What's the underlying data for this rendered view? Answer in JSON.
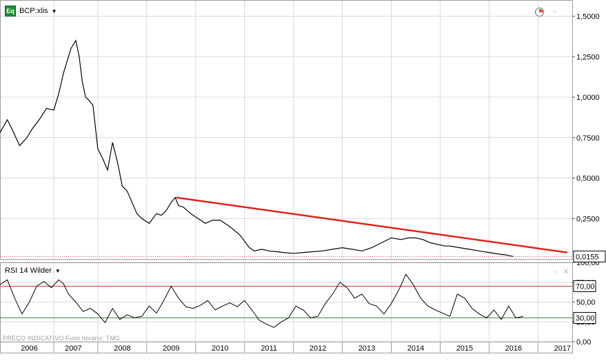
{
  "header": {
    "icon_label": "Eq",
    "ticker": "BCP:xlis",
    "rsi_title": "RSI 14 Wilder",
    "footer_left": "PREÇO INDICATIVO",
    "footer_tz": "Fuso horário: TMG"
  },
  "colors": {
    "trendline": "#e0211a",
    "overbought": "#c63b3b",
    "oversold": "#2f8f3f",
    "price": "#000000",
    "grid": "#d9d9d9",
    "label_box": "#000000"
  },
  "chart_data": [
    {
      "type": "line",
      "title": "",
      "subtitle": "",
      "xlabel": "",
      "ylabel": "",
      "x_unit": "year",
      "xlim": [
        2005.8,
        2017.5
      ],
      "ylim": [
        0,
        1.6
      ],
      "y_ticks": [
        "0,2500",
        "0,5000",
        "0,7500",
        "1,0000",
        "1,2500",
        "1,5000"
      ],
      "y_tick_values": [
        0.25,
        0.5,
        0.75,
        1.0,
        1.25,
        1.5
      ],
      "x_ticks": [
        "2006",
        "2007",
        "2008",
        "2009",
        "2010",
        "2011",
        "2012",
        "2013",
        "2014",
        "2015",
        "2016",
        "2017"
      ],
      "x_tick_values": [
        2006.4,
        2007.3,
        2008.3,
        2009.3,
        2010.3,
        2011.3,
        2012.3,
        2013.3,
        2014.3,
        2015.3,
        2016.3,
        2017.3
      ],
      "grid": true,
      "series": [
        {
          "x": [
            2005.8,
            2005.95,
            2006.05,
            2006.2,
            2006.35,
            2006.45,
            2006.6,
            2006.75,
            2006.9,
            2007.0,
            2007.1,
            2007.25,
            2007.35,
            2007.42,
            2007.48,
            2007.55,
            2007.62,
            2007.7,
            2007.8,
            2007.9,
            2008.0,
            2008.1,
            2008.2,
            2008.3,
            2008.4,
            2008.5,
            2008.6,
            2008.7,
            2008.85,
            2009.0,
            2009.1,
            2009.2,
            2009.3,
            2009.38,
            2009.45,
            2009.55,
            2009.7,
            2009.85,
            2010.0,
            2010.15,
            2010.3,
            2010.5,
            2010.7,
            2010.9,
            2011.0,
            2011.15,
            2011.3,
            2011.45,
            2011.6,
            2011.8,
            2012.0,
            2012.2,
            2012.4,
            2012.6,
            2012.8,
            2013.0,
            2013.2,
            2013.4,
            2013.6,
            2013.8,
            2014.0,
            2014.15,
            2014.3,
            2014.45,
            2014.6,
            2014.75,
            2014.9,
            2015.0,
            2015.2,
            2015.4,
            2015.6,
            2015.8,
            2016.0,
            2016.15,
            2016.3
          ],
          "values": [
            0.78,
            0.86,
            0.8,
            0.7,
            0.75,
            0.8,
            0.86,
            0.93,
            0.92,
            1.02,
            1.15,
            1.3,
            1.35,
            1.25,
            1.1,
            1.0,
            0.98,
            0.95,
            0.68,
            0.62,
            0.55,
            0.72,
            0.6,
            0.45,
            0.42,
            0.35,
            0.28,
            0.25,
            0.22,
            0.28,
            0.27,
            0.3,
            0.35,
            0.38,
            0.33,
            0.32,
            0.28,
            0.25,
            0.22,
            0.24,
            0.24,
            0.2,
            0.15,
            0.07,
            0.05,
            0.06,
            0.05,
            0.045,
            0.04,
            0.035,
            0.04,
            0.045,
            0.05,
            0.06,
            0.07,
            0.06,
            0.05,
            0.07,
            0.1,
            0.13,
            0.12,
            0.13,
            0.13,
            0.12,
            0.1,
            0.09,
            0.08,
            0.08,
            0.07,
            0.06,
            0.05,
            0.04,
            0.03,
            0.025,
            0.0155
          ]
        }
      ],
      "trendline": {
        "x": [
          2009.4,
          2017.4
        ],
        "values": [
          0.38,
          0.04
        ]
      },
      "last_value_label": "0,0155",
      "last_value": 0.0155
    },
    {
      "type": "line",
      "title": "RSI 14 Wilder",
      "xlabel": "",
      "ylabel": "",
      "x_unit": "year",
      "xlim": [
        2005.8,
        2017.5
      ],
      "ylim": [
        0,
        100
      ],
      "y_ticks": [
        "0,00",
        "25,00",
        "50,00",
        "75,00",
        "100,00"
      ],
      "y_tick_values": [
        0,
        25,
        50,
        75,
        100
      ],
      "reference_lines": [
        {
          "value": 70,
          "label": "70,00",
          "color": "#c63b3b"
        },
        {
          "value": 30,
          "label": "30,00",
          "color": "#2f8f3f"
        }
      ],
      "grid": true,
      "series": [
        {
          "x": [
            2005.8,
            2005.95,
            2006.1,
            2006.25,
            2006.4,
            2006.55,
            2006.7,
            2006.85,
            2007.0,
            2007.1,
            2007.2,
            2007.35,
            2007.5,
            2007.65,
            2007.8,
            2007.95,
            2008.1,
            2008.25,
            2008.4,
            2008.55,
            2008.7,
            2008.85,
            2009.0,
            2009.15,
            2009.3,
            2009.45,
            2009.6,
            2009.75,
            2009.9,
            2010.05,
            2010.2,
            2010.35,
            2010.5,
            2010.65,
            2010.8,
            2010.95,
            2011.1,
            2011.25,
            2011.4,
            2011.55,
            2011.7,
            2011.85,
            2012.0,
            2012.15,
            2012.3,
            2012.45,
            2012.6,
            2012.75,
            2012.9,
            2013.05,
            2013.2,
            2013.35,
            2013.5,
            2013.65,
            2013.8,
            2013.95,
            2014.1,
            2014.25,
            2014.4,
            2014.55,
            2014.7,
            2014.85,
            2015.0,
            2015.15,
            2015.3,
            2015.45,
            2015.6,
            2015.75,
            2015.9,
            2016.05,
            2016.2,
            2016.35,
            2016.5
          ],
          "values": [
            72,
            78,
            55,
            35,
            50,
            70,
            76,
            68,
            78,
            73,
            60,
            50,
            38,
            42,
            35,
            24,
            42,
            28,
            34,
            30,
            32,
            45,
            36,
            52,
            70,
            55,
            44,
            42,
            46,
            52,
            40,
            45,
            49,
            44,
            52,
            40,
            27,
            22,
            18,
            25,
            30,
            45,
            40,
            30,
            32,
            48,
            60,
            75,
            68,
            55,
            60,
            48,
            45,
            35,
            48,
            65,
            85,
            72,
            55,
            45,
            40,
            36,
            32,
            60,
            55,
            42,
            35,
            30,
            40,
            28,
            45,
            30,
            32
          ]
        }
      ]
    }
  ]
}
